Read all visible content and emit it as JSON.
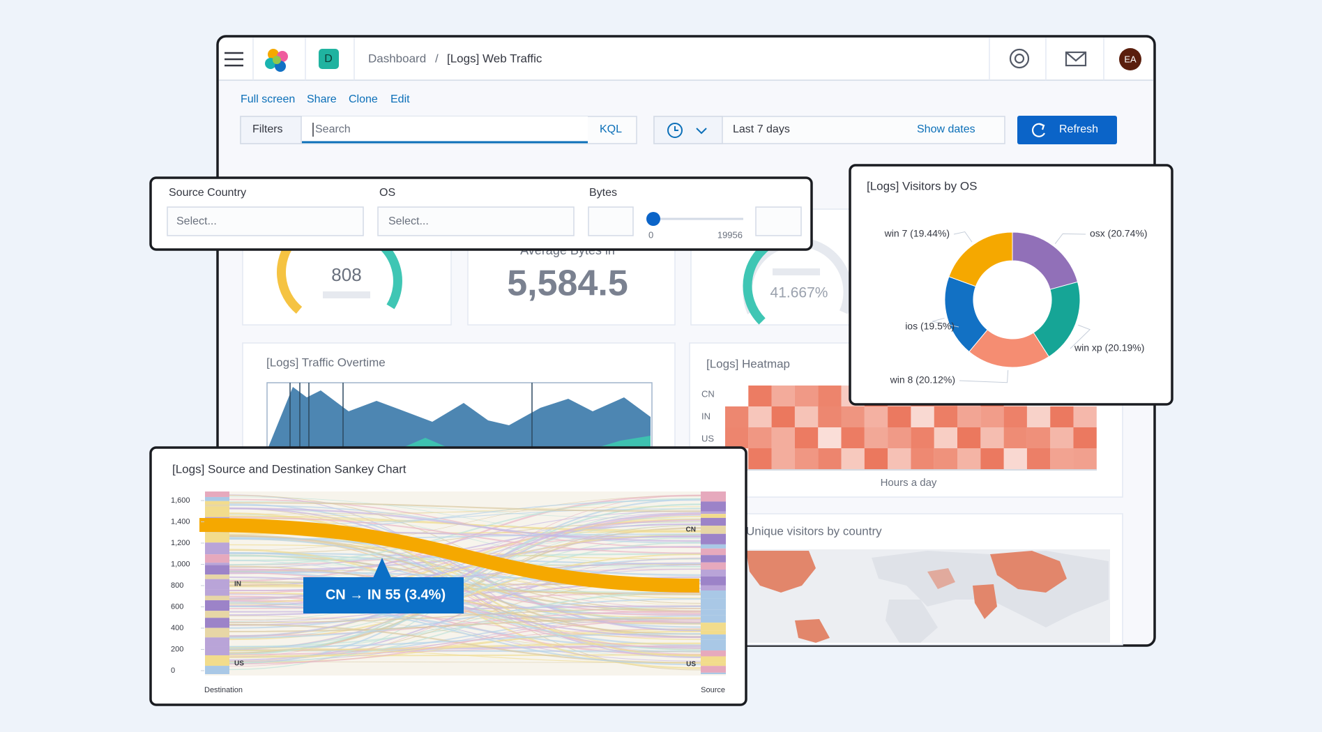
{
  "header": {
    "app_badge": "D",
    "breadcrumb": [
      "Dashboard",
      "[Logs] Web Traffic"
    ],
    "avatar": "EA"
  },
  "actions": [
    "Full screen",
    "Share",
    "Clone",
    "Edit"
  ],
  "query": {
    "filters": "Filters",
    "placeholder": "Search",
    "language": "KQL",
    "time_range": "Last 7 days",
    "show_dates": "Show dates",
    "refresh": "Refresh"
  },
  "controls": {
    "source_country": {
      "label": "Source Country",
      "placeholder": "Select..."
    },
    "os": {
      "label": "OS",
      "placeholder": "Select..."
    },
    "bytes": {
      "label": "Bytes",
      "min": 0,
      "max": 19956
    }
  },
  "metrics": {
    "gauge_value": 808,
    "average_label": "Average Bytes in",
    "average_value": "5,584.5",
    "percent_gauge": {
      "value": 41.667,
      "label": "41.667%"
    }
  },
  "traffic": {
    "title": "[Logs] Traffic Overtime"
  },
  "heatmap": {
    "title": "[Logs] Heatmap",
    "rows": [
      "CN",
      "IN",
      "US"
    ],
    "x_label": "Hours a day"
  },
  "map": {
    "title": "Unique visitors by country"
  },
  "chart_data": {
    "type": "pie",
    "title": "[Logs] Visitors by OS",
    "categories": [
      "osx",
      "win xp",
      "win 8",
      "ios",
      "win 7"
    ],
    "values": [
      20.74,
      20.19,
      20.12,
      19.5,
      19.44
    ],
    "value_labels": [
      "osx (20.74%)",
      "win xp (20.19%)",
      "win 8 (20.12%)",
      "ios (19.5%)",
      "win 7 (19.44%)"
    ],
    "colors": [
      "#9170b8",
      "#16a596",
      "#f58d72",
      "#1271c4",
      "#f5a800"
    ],
    "donut": true
  },
  "sankey": {
    "title": "[Logs] Source and Destination Sankey Chart",
    "ylim": [
      0,
      1600
    ],
    "yticks": [
      0,
      200,
      400,
      600,
      800,
      {
        "value": 1000,
        "label": "1,000"
      },
      {
        "value": 1200,
        "label": "1,200"
      },
      {
        "value": 1400,
        "label": "1,400"
      },
      {
        "value": 1600,
        "label": "1,600"
      }
    ],
    "left_labels": [
      "IN",
      "US"
    ],
    "right_labels": [
      "CN",
      "US"
    ],
    "tooltip": "CN → IN 55 (3.4%)",
    "x_left": "Destination",
    "x_right": "Source"
  }
}
